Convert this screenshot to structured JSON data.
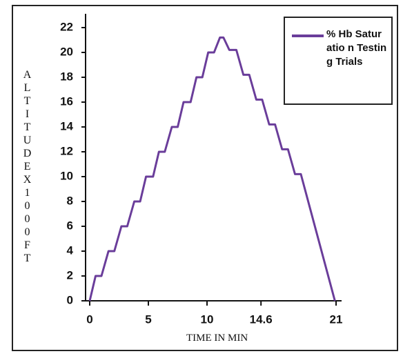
{
  "chart_data": {
    "type": "line",
    "xlabel": "TIME IN MIN",
    "ylabel": "ALTITUDEX1000FT",
    "x": [
      0,
      0.5,
      1.0,
      1.6,
      2.1,
      2.7,
      3.2,
      3.8,
      4.3,
      4.8,
      5.4,
      5.9,
      6.4,
      7.0,
      7.5,
      8.0,
      8.6,
      9.1,
      9.6,
      10.1,
      10.6,
      11.1,
      11.4,
      11.9,
      12.5,
      13.1,
      13.6,
      14.2,
      14.7,
      15.3,
      15.8,
      16.4,
      16.9,
      17.5,
      18.0,
      20.9
    ],
    "series": [
      {
        "name": "% Hb Saturatio n Testing Trials",
        "color": "#6a3d9a",
        "values": [
          0,
          2,
          2,
          4,
          4,
          6,
          6,
          8,
          8,
          10,
          10,
          12,
          12,
          14,
          14,
          16,
          16,
          18,
          18,
          20,
          20,
          21.2,
          21.2,
          20.2,
          20.2,
          18.2,
          18.2,
          16.2,
          16.2,
          14.2,
          14.2,
          12.2,
          12.2,
          10.2,
          10.2,
          0
        ]
      }
    ],
    "xlim": [
      0,
      21
    ],
    "xticks": [
      0,
      5,
      10,
      14.6,
      21
    ],
    "ylim": [
      0,
      22
    ],
    "yticks": [
      0,
      2,
      4,
      6,
      8,
      10,
      12,
      14,
      16,
      18,
      20,
      22
    ],
    "legend": "upper right"
  }
}
